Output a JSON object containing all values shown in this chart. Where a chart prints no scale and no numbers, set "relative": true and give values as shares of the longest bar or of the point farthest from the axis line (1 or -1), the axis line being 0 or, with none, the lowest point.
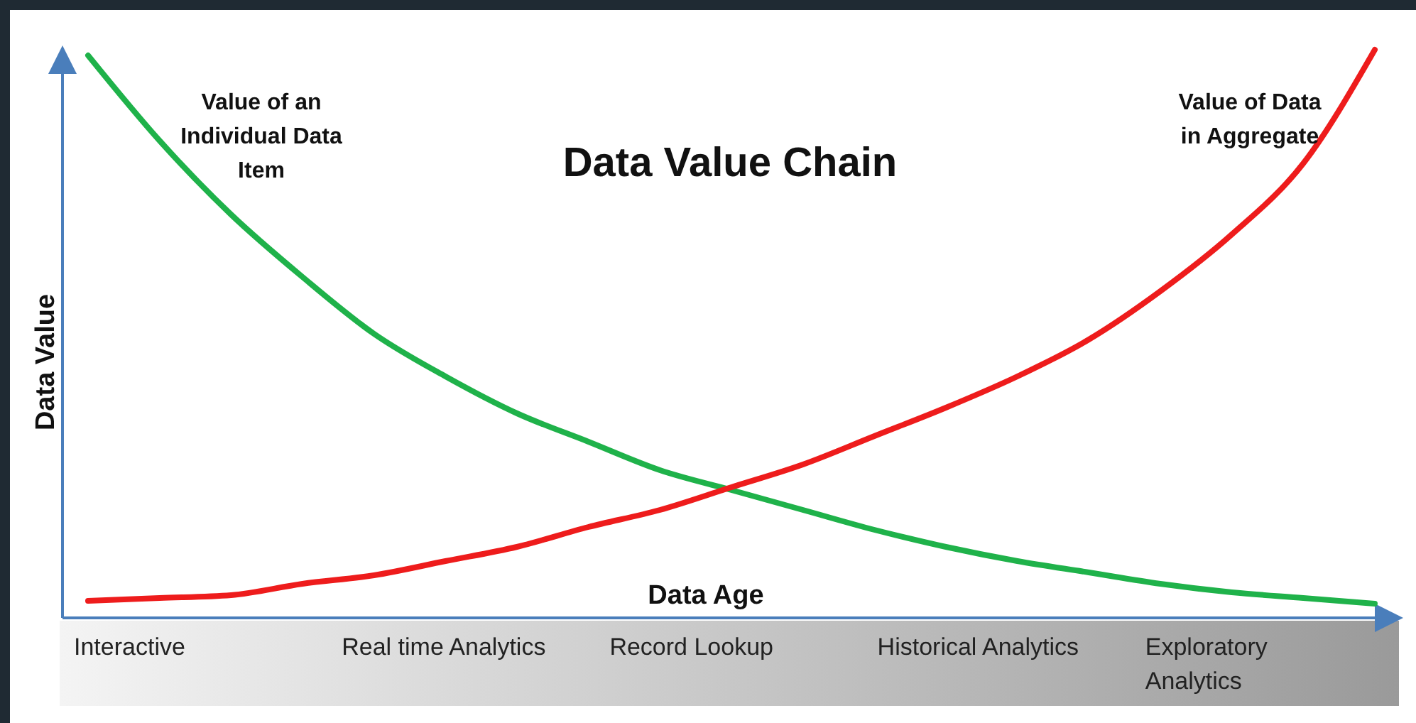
{
  "chart_data": {
    "type": "line",
    "title": "Data Value Chain",
    "xlabel": "Data Age",
    "ylabel": "Data Value",
    "relative": true,
    "marker": "none",
    "line_style": "solid",
    "categories": [
      null,
      null,
      null,
      null,
      null,
      null,
      null,
      null,
      null,
      null,
      null,
      null,
      null,
      null,
      null,
      null,
      null,
      null,
      null
    ],
    "series": [
      {
        "name": "Value of an Individual Data Item",
        "color": "#1fb24a",
        "values": [
          0.99,
          0.84,
          0.71,
          0.6,
          0.5,
          0.425,
          0.36,
          0.31,
          0.26,
          0.225,
          0.19,
          0.155,
          0.125,
          0.1,
          0.08,
          0.06,
          0.045,
          0.035,
          0.025
        ]
      },
      {
        "name": "Value of Data in Aggregate",
        "color": "#ee1c1c",
        "values": [
          0.03,
          0.035,
          0.04,
          0.06,
          0.075,
          0.1,
          0.125,
          0.16,
          0.19,
          0.23,
          0.27,
          0.32,
          0.37,
          0.425,
          0.49,
          0.575,
          0.675,
          0.8,
          1.0
        ]
      }
    ],
    "annotations": [
      "Interactive",
      "Real time Analytics",
      "Record Lookup",
      "Historical Analytics",
      "Exploratory Analytics"
    ]
  }
}
